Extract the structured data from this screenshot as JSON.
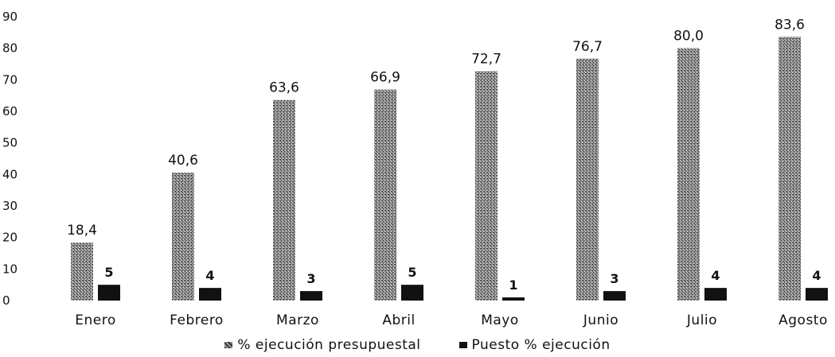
{
  "chart_data": {
    "type": "bar",
    "title": "",
    "xlabel": "",
    "ylabel": "",
    "ylim": [
      0,
      90
    ],
    "yticks": [
      0,
      10,
      20,
      30,
      40,
      50,
      60,
      70,
      80,
      90
    ],
    "grid": false,
    "legend_position": "bottom",
    "categories": [
      "Enero",
      "Febrero",
      "Marzo",
      "Abril",
      "Mayo",
      "Junio",
      "Julio",
      "Agosto"
    ],
    "series": [
      {
        "name": "% ejecución presupuestal",
        "values": [
          18.4,
          40.6,
          63.6,
          66.9,
          72.7,
          76.7,
          80.0,
          83.6
        ],
        "labels": [
          "18,4",
          "40,6",
          "63,6",
          "66,9",
          "72,7",
          "76,7",
          "80,0",
          "83,6"
        ],
        "color": "#5a5a5a"
      },
      {
        "name": "Puesto % ejecución",
        "values": [
          5,
          4,
          3,
          5,
          1,
          3,
          4,
          4
        ],
        "labels": [
          "5",
          "4",
          "3",
          "5",
          "1",
          "3",
          "4",
          "4"
        ],
        "color": "#111111"
      }
    ]
  }
}
